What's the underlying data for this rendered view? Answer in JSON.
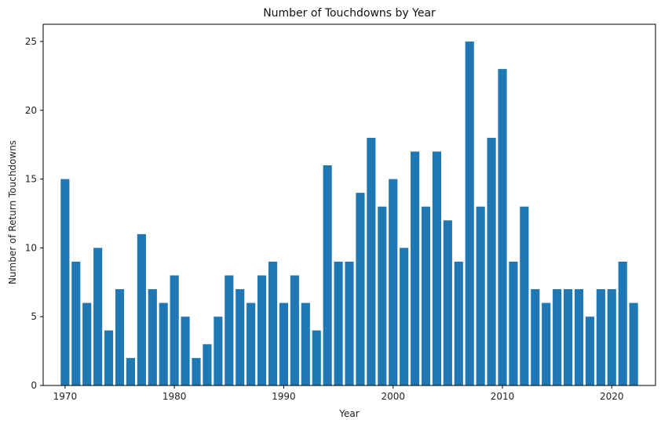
{
  "chart_data": {
    "type": "bar",
    "title": "Number of Touchdowns by Year",
    "xlabel": "Year",
    "ylabel": "Number of Return Touchdowns",
    "x": [
      1970,
      1971,
      1972,
      1973,
      1974,
      1975,
      1976,
      1977,
      1978,
      1979,
      1980,
      1981,
      1982,
      1983,
      1984,
      1985,
      1986,
      1987,
      1988,
      1989,
      1990,
      1991,
      1992,
      1993,
      1994,
      1995,
      1996,
      1997,
      1998,
      1999,
      2000,
      2001,
      2002,
      2003,
      2004,
      2005,
      2006,
      2007,
      2008,
      2009,
      2010,
      2011,
      2012,
      2013,
      2014,
      2015,
      2016,
      2017,
      2018,
      2019,
      2020,
      2021,
      2022
    ],
    "values": [
      15,
      9,
      6,
      10,
      4,
      7,
      2,
      11,
      7,
      6,
      8,
      5,
      2,
      3,
      5,
      8,
      7,
      6,
      8,
      9,
      6,
      8,
      6,
      4,
      16,
      9,
      9,
      14,
      18,
      13,
      15,
      10,
      17,
      13,
      17,
      12,
      9,
      25,
      13,
      18,
      23,
      9,
      13,
      7,
      6,
      7,
      7,
      7,
      5,
      7,
      7,
      9,
      6
    ],
    "xticks": [
      1970,
      1980,
      1990,
      2000,
      2010,
      2020
    ],
    "yticks": [
      0,
      5,
      10,
      15,
      20,
      25
    ],
    "xlim": [
      1968.0,
      2024.0
    ],
    "ylim": [
      0,
      26.25
    ],
    "bar_color": "#1f77b4",
    "grid": false,
    "legend": "none"
  }
}
